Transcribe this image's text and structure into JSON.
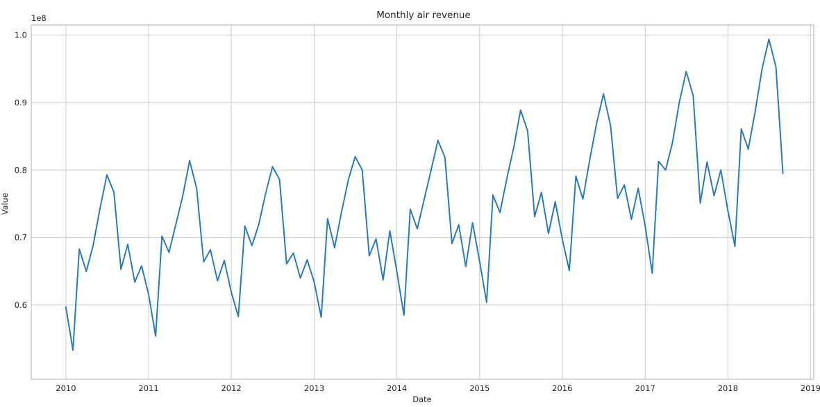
{
  "chart_data": {
    "type": "line",
    "title": "Monthly air revenue",
    "xlabel": "Date",
    "ylabel": "Value",
    "y_offset_label": "1e8",
    "grid": true,
    "legend": "none",
    "line_color": "#2b7bba",
    "grid_color": "#cccccc",
    "axes_color": "#b0b0b0",
    "xlim": [
      "2009-08-01",
      "2019-01-15"
    ],
    "ylim": [
      0.49,
      1.015
    ],
    "x_ticks": [
      {
        "value": "2010-01-01",
        "label": "2010"
      },
      {
        "value": "2011-01-01",
        "label": "2011"
      },
      {
        "value": "2012-01-01",
        "label": "2012"
      },
      {
        "value": "2013-01-01",
        "label": "2013"
      },
      {
        "value": "2014-01-01",
        "label": "2014"
      },
      {
        "value": "2015-01-01",
        "label": "2015"
      },
      {
        "value": "2016-01-01",
        "label": "2016"
      },
      {
        "value": "2017-01-01",
        "label": "2017"
      },
      {
        "value": "2018-01-01",
        "label": "2018"
      },
      {
        "value": "2019-01-01",
        "label": "2019"
      }
    ],
    "y_ticks": [
      {
        "value": 0.6,
        "label": "0.6"
      },
      {
        "value": 0.7,
        "label": "0.7"
      },
      {
        "value": 0.8,
        "label": "0.8"
      },
      {
        "value": 0.9,
        "label": "0.9"
      },
      {
        "value": 1.0,
        "label": "1.0"
      }
    ],
    "series": [
      {
        "x": [
          "2010-01-01",
          "2010-02-01",
          "2010-03-01",
          "2010-04-01",
          "2010-05-01",
          "2010-06-01",
          "2010-07-01",
          "2010-08-01",
          "2010-09-01",
          "2010-10-01",
          "2010-11-01",
          "2010-12-01",
          "2011-01-01",
          "2011-02-01",
          "2011-03-01",
          "2011-04-01",
          "2011-05-01",
          "2011-06-01",
          "2011-07-01",
          "2011-08-01",
          "2011-09-01",
          "2011-10-01",
          "2011-11-01",
          "2011-12-01",
          "2012-01-01",
          "2012-02-01",
          "2012-03-01",
          "2012-04-01",
          "2012-05-01",
          "2012-06-01",
          "2012-07-01",
          "2012-08-01",
          "2012-09-01",
          "2012-10-01",
          "2012-11-01",
          "2012-12-01",
          "2013-01-01",
          "2013-02-01",
          "2013-03-01",
          "2013-04-01",
          "2013-05-01",
          "2013-06-01",
          "2013-07-01",
          "2013-08-01",
          "2013-09-01",
          "2013-10-01",
          "2013-11-01",
          "2013-12-01",
          "2014-01-01",
          "2014-02-01",
          "2014-03-01",
          "2014-04-01",
          "2014-05-01",
          "2014-06-01",
          "2014-07-01",
          "2014-08-01",
          "2014-09-01",
          "2014-10-01",
          "2014-11-01",
          "2014-12-01",
          "2015-01-01",
          "2015-02-01",
          "2015-03-01",
          "2015-04-01",
          "2015-05-01",
          "2015-06-01",
          "2015-07-01",
          "2015-08-01",
          "2015-09-01",
          "2015-10-01",
          "2015-11-01",
          "2015-12-01",
          "2016-01-01",
          "2016-02-01",
          "2016-03-01",
          "2016-04-01",
          "2016-05-01",
          "2016-06-01",
          "2016-07-01",
          "2016-08-01",
          "2016-09-01",
          "2016-10-01",
          "2016-11-01",
          "2016-12-01",
          "2017-01-01",
          "2017-02-01",
          "2017-03-01",
          "2017-04-01",
          "2017-05-01",
          "2017-06-01",
          "2017-07-01",
          "2017-08-01",
          "2017-09-01",
          "2017-10-01",
          "2017-11-01",
          "2017-12-01",
          "2018-01-01",
          "2018-02-01",
          "2018-03-01",
          "2018-04-01",
          "2018-05-01",
          "2018-06-01",
          "2018-07-01",
          "2018-08-01",
          "2018-09-01"
        ],
        "y": [
          0.597,
          0.533,
          0.683,
          0.65,
          0.688,
          0.744,
          0.793,
          0.767,
          0.653,
          0.69,
          0.634,
          0.658,
          0.616,
          0.554,
          0.702,
          0.678,
          0.719,
          0.762,
          0.814,
          0.773,
          0.664,
          0.682,
          0.636,
          0.666,
          0.619,
          0.583,
          0.717,
          0.688,
          0.719,
          0.766,
          0.805,
          0.786,
          0.661,
          0.677,
          0.64,
          0.667,
          0.634,
          0.582,
          0.728,
          0.685,
          0.737,
          0.786,
          0.82,
          0.8,
          0.673,
          0.698,
          0.637,
          0.71,
          0.649,
          0.585,
          0.742,
          0.713,
          0.756,
          0.8,
          0.844,
          0.819,
          0.691,
          0.719,
          0.657,
          0.722,
          0.665,
          0.604,
          0.763,
          0.737,
          0.787,
          0.834,
          0.889,
          0.858,
          0.731,
          0.767,
          0.706,
          0.753,
          0.698,
          0.651,
          0.791,
          0.757,
          0.815,
          0.87,
          0.913,
          0.866,
          0.758,
          0.778,
          0.727,
          0.773,
          0.717,
          0.647,
          0.813,
          0.8,
          0.84,
          0.901,
          0.946,
          0.91,
          0.751,
          0.812,
          0.762,
          0.8,
          0.74,
          0.687,
          0.861,
          0.831,
          0.886,
          0.95,
          0.994,
          0.953,
          0.795
        ]
      }
    ]
  }
}
